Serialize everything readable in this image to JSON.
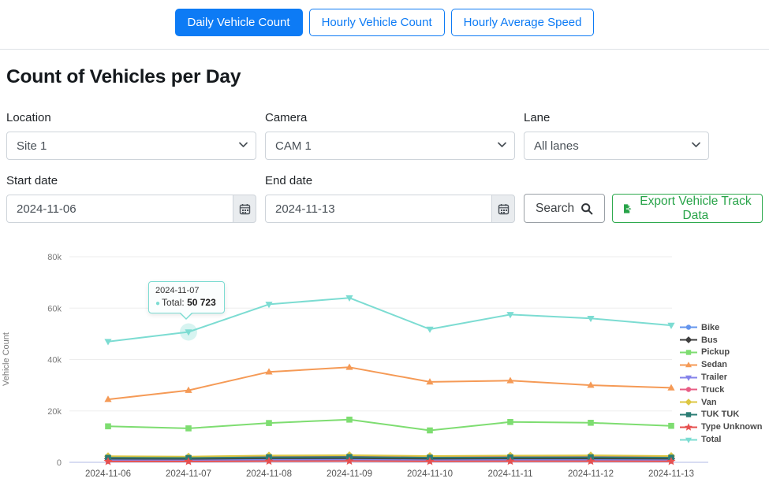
{
  "tabs": [
    {
      "label": "Daily Vehicle Count",
      "active": true
    },
    {
      "label": "Hourly Vehicle Count",
      "active": false
    },
    {
      "label": "Hourly Average Speed",
      "active": false
    }
  ],
  "page_title": "Count of Vehicles per Day",
  "filters": {
    "location": {
      "label": "Location",
      "value": "Site 1"
    },
    "camera": {
      "label": "Camera",
      "value": "CAM 1"
    },
    "lane": {
      "label": "Lane",
      "value": "All lanes"
    },
    "start_date": {
      "label": "Start date",
      "value": "2024-11-06"
    },
    "end_date": {
      "label": "End date",
      "value": "2024-11-13"
    }
  },
  "buttons": {
    "search": "Search",
    "export": "Export Vehicle Track Data"
  },
  "tooltip": {
    "date": "2024-11-07",
    "label": "Total:",
    "value": "50 723"
  },
  "colors": {
    "primary": "#0d7bf5",
    "export_green": "#27a348",
    "tooltip_accent": "#7cdcd2"
  },
  "chart_data": {
    "type": "line",
    "title": "Count of Vehicles per Day",
    "ylabel": "Vehicle Count",
    "xlabel": "",
    "ylim": [
      0,
      80000
    ],
    "grid": true,
    "legend_position": "right",
    "x": [
      "2024-11-06",
      "2024-11-07",
      "2024-11-08",
      "2024-11-09",
      "2024-11-10",
      "2024-11-11",
      "2024-11-12",
      "2024-11-13"
    ],
    "yticks": [
      {
        "value": 0,
        "label": "0"
      },
      {
        "value": 20000,
        "label": "20k"
      },
      {
        "value": 40000,
        "label": "40k"
      },
      {
        "value": 60000,
        "label": "60k"
      },
      {
        "value": 80000,
        "label": "80k"
      }
    ],
    "highlight": {
      "series": "Total",
      "x_index": 1,
      "value": 50723
    },
    "series": [
      {
        "name": "Bike",
        "color": "#6495ed",
        "marker": "circle",
        "values": [
          950,
          1000,
          1150,
          1200,
          1000,
          1100,
          1100,
          1000
        ]
      },
      {
        "name": "Bus",
        "color": "#3f3f3f",
        "marker": "diamond",
        "values": [
          1400,
          1350,
          1550,
          1600,
          1400,
          1500,
          1500,
          1400
        ]
      },
      {
        "name": "Pickup",
        "color": "#7edd71",
        "marker": "square",
        "values": [
          14000,
          13200,
          15300,
          16600,
          12400,
          15700,
          15400,
          14200
        ]
      },
      {
        "name": "Sedan",
        "color": "#f59a56",
        "marker": "triangle-up",
        "values": [
          24500,
          28000,
          35200,
          37000,
          31300,
          31800,
          30000,
          29000
        ]
      },
      {
        "name": "Trailer",
        "color": "#8583ea",
        "marker": "triangle-down",
        "values": [
          650,
          700,
          850,
          900,
          750,
          800,
          800,
          700
        ]
      },
      {
        "name": "Truck",
        "color": "#e85d85",
        "marker": "circle",
        "values": [
          2000,
          1950,
          2150,
          2250,
          1950,
          2050,
          2100,
          1950
        ]
      },
      {
        "name": "Van",
        "color": "#ddc743",
        "marker": "diamond",
        "values": [
          2350,
          2250,
          2650,
          2750,
          2450,
          2600,
          2700,
          2450
        ]
      },
      {
        "name": "TUK TUK",
        "color": "#2b7d74",
        "marker": "square",
        "values": [
          1750,
          1700,
          1950,
          2050,
          1800,
          1900,
          1950,
          1800
        ]
      },
      {
        "name": "Type Unknown",
        "color": "#e6504f",
        "marker": "star",
        "values": [
          350,
          350,
          450,
          480,
          380,
          420,
          430,
          380
        ]
      },
      {
        "name": "Total",
        "color": "#7cdcd2",
        "marker": "triangle-down",
        "values": [
          47000,
          50723,
          61500,
          64000,
          51800,
          57500,
          56000,
          53300
        ]
      }
    ]
  }
}
